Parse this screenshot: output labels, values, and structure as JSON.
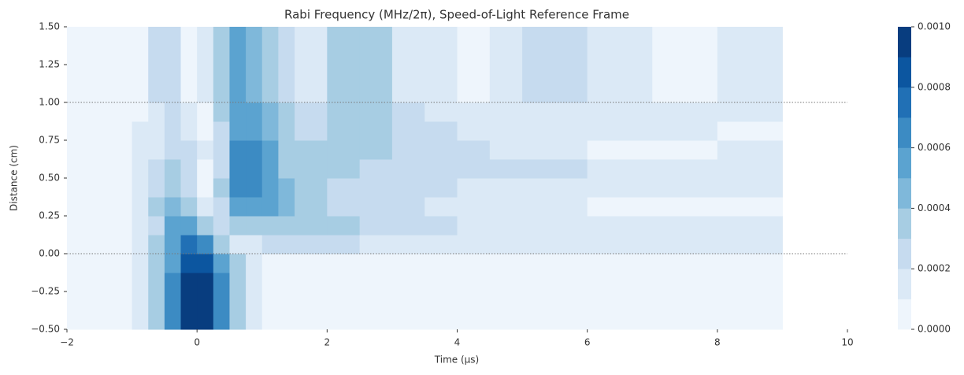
{
  "chart_data": {
    "type": "contourf",
    "title": "Rabi Frequency (MHz/2π), Speed-of-Light Reference Frame",
    "xlabel": "Time (μs)",
    "ylabel": "Distance (cm)",
    "xlim": [
      -2,
      10
    ],
    "ylim": [
      -0.5,
      1.5
    ],
    "xticks": [
      {
        "value": -2,
        "label": "−2"
      },
      0,
      2,
      4,
      6,
      8,
      10
    ],
    "yticks": [
      {
        "value": -0.5,
        "label": "−0.50"
      },
      {
        "value": -0.25,
        "label": "−0.25"
      },
      {
        "value": 0,
        "label": "0.00"
      },
      {
        "value": 0.25,
        "label": "0.25"
      },
      {
        "value": 0.5,
        "label": "0.50"
      },
      {
        "value": 0.75,
        "label": "0.75"
      },
      {
        "value": 1,
        "label": "1.00"
      },
      {
        "value": 1.25,
        "label": "1.25"
      },
      {
        "value": 1.5,
        "label": "1.50"
      }
    ],
    "x_edges": [
      -2,
      -1,
      -0.75,
      -0.5,
      -0.25,
      0,
      0.25,
      0.5,
      0.75,
      1,
      1.25,
      1.5,
      2,
      2.5,
      3,
      3.5,
      4,
      4.5,
      5,
      6,
      7,
      8,
      9,
      10
    ],
    "y_edges": [
      -0.5,
      -0.25,
      -0.125,
      0,
      0.125,
      0.25,
      0.375,
      0.5,
      0.625,
      0.75,
      0.875,
      1,
      1.25,
      1.5
    ],
    "z": [
      [
        5e-05,
        0.00015,
        0.00035,
        0.00065,
        0.00095,
        0.00095,
        0.00065,
        0.00035,
        0.00015,
        5e-05,
        5e-05,
        5e-05,
        5e-05,
        5e-05,
        5e-05,
        5e-05,
        5e-05,
        5e-05,
        5e-05,
        5e-05,
        5e-05,
        5e-05
      ],
      [
        5e-05,
        0.00015,
        0.00035,
        0.00065,
        0.00095,
        0.00095,
        0.00065,
        0.00035,
        0.00015,
        5e-05,
        5e-05,
        5e-05,
        5e-05,
        5e-05,
        5e-05,
        5e-05,
        5e-05,
        5e-05,
        5e-05,
        5e-05,
        5e-05,
        5e-05
      ],
      [
        5e-05,
        0.00015,
        0.00035,
        0.00055,
        0.00085,
        0.00085,
        0.00055,
        0.00035,
        0.00015,
        5e-05,
        5e-05,
        5e-05,
        5e-05,
        5e-05,
        5e-05,
        5e-05,
        5e-05,
        5e-05,
        5e-05,
        5e-05,
        5e-05,
        5e-05
      ],
      [
        5e-05,
        0.00015,
        0.00035,
        0.00055,
        0.00075,
        0.00065,
        0.00035,
        0.00015,
        0.00015,
        0.00025,
        0.00025,
        0.00025,
        0.00025,
        0.00015,
        0.00015,
        0.00015,
        0.00015,
        0.00015,
        0.00015,
        0.00015,
        0.00015,
        0.00015
      ],
      [
        5e-05,
        0.00015,
        0.00025,
        0.00055,
        0.00055,
        0.00035,
        0.00025,
        0.00035,
        0.00035,
        0.00035,
        0.00035,
        0.00035,
        0.00035,
        0.00025,
        0.00025,
        0.00025,
        0.00015,
        0.00015,
        0.00015,
        0.00015,
        0.00015,
        0.00015
      ],
      [
        5e-05,
        0.00015,
        0.00035,
        0.00045,
        0.00035,
        0.00015,
        0.00025,
        0.00055,
        0.00055,
        0.00055,
        0.00045,
        0.00035,
        0.00025,
        0.00025,
        0.00025,
        0.00015,
        0.00015,
        0.00015,
        0.00015,
        5e-05,
        5e-05,
        5e-05
      ],
      [
        5e-05,
        0.00015,
        0.00025,
        0.00035,
        0.00025,
        5e-05,
        0.00035,
        0.00065,
        0.00065,
        0.00055,
        0.00045,
        0.00035,
        0.00025,
        0.00025,
        0.00025,
        0.00025,
        0.00015,
        0.00015,
        0.00015,
        0.00015,
        0.00015,
        0.00015
      ],
      [
        5e-05,
        0.00015,
        0.00025,
        0.00035,
        0.00025,
        5e-05,
        0.00025,
        0.00065,
        0.00065,
        0.00055,
        0.00035,
        0.00035,
        0.00035,
        0.00025,
        0.00025,
        0.00025,
        0.00025,
        0.00025,
        0.00025,
        0.00015,
        0.00015,
        0.00015
      ],
      [
        5e-05,
        0.00015,
        0.00015,
        0.00025,
        0.00025,
        0.00015,
        0.00025,
        0.00065,
        0.00065,
        0.00055,
        0.00035,
        0.00035,
        0.00035,
        0.00035,
        0.00025,
        0.00025,
        0.00025,
        0.00015,
        0.00015,
        5e-05,
        5e-05,
        0.00015
      ],
      [
        5e-05,
        0.00015,
        0.00015,
        0.00025,
        0.00015,
        5e-05,
        0.00025,
        0.00055,
        0.00055,
        0.00045,
        0.00035,
        0.00025,
        0.00035,
        0.00035,
        0.00025,
        0.00025,
        0.00015,
        0.00015,
        0.00015,
        0.00015,
        0.00015,
        5e-05
      ],
      [
        5e-05,
        5e-05,
        0.00015,
        0.00025,
        0.00015,
        5e-05,
        0.00035,
        0.00055,
        0.00055,
        0.00045,
        0.00035,
        0.00025,
        0.00035,
        0.00035,
        0.00025,
        0.00015,
        0.00015,
        0.00015,
        0.00015,
        0.00015,
        0.00015,
        0.00015
      ],
      [
        5e-05,
        5e-05,
        0.00025,
        0.00025,
        5e-05,
        0.00015,
        0.00035,
        0.00055,
        0.00045,
        0.00035,
        0.00025,
        0.00015,
        0.00035,
        0.00035,
        0.00015,
        0.00015,
        5e-05,
        0.00015,
        0.00025,
        0.00015,
        5e-05,
        0.00015
      ],
      [
        5e-05,
        5e-05,
        0.00025,
        0.00025,
        5e-05,
        0.00015,
        0.00035,
        0.00055,
        0.00045,
        0.00035,
        0.00025,
        0.00015,
        0.00035,
        0.00035,
        0.00015,
        0.00015,
        5e-05,
        0.00015,
        0.00025,
        0.00015,
        5e-05,
        0.00015
      ]
    ],
    "levels": [
      0,
      0.0001,
      0.0002,
      0.0003,
      0.0004,
      0.0005,
      0.0006,
      0.0007,
      0.0008,
      0.0009,
      0.001
    ],
    "colors": [
      "#eef5fc",
      "#dbe9f6",
      "#c6dbef",
      "#a7cde3",
      "#7fb8da",
      "#5ba3d0",
      "#3c8bc3",
      "#2170b5",
      "#0c56a0",
      "#083d7f"
    ],
    "colorbar_ticks": [
      {
        "value": 0,
        "label": "0.0000"
      },
      {
        "value": 0.0002,
        "label": "0.0002"
      },
      {
        "value": 0.0004,
        "label": "0.0004"
      },
      {
        "value": 0.0006,
        "label": "0.0006"
      },
      {
        "value": 0.0008,
        "label": "0.0008"
      },
      {
        "value": 0.001,
        "label": "0.0010"
      }
    ],
    "hlines": [
      0,
      1
    ],
    "grid": false
  }
}
